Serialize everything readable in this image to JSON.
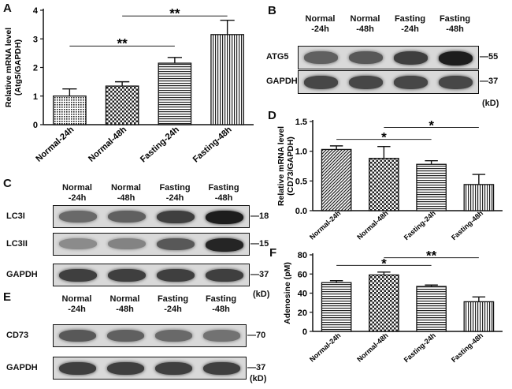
{
  "panels": {
    "A": "A",
    "B": "B",
    "C": "C",
    "D": "D",
    "E": "E",
    "F": "F"
  },
  "conditions_two_line": [
    "Normal\n-24h",
    "Normal\n-48h",
    "Fasting\n-24h",
    "Fasting\n-48h"
  ],
  "kd_label": "(kD)",
  "blot_B": {
    "rows": [
      {
        "name": "ATG5",
        "marker": "55",
        "intensities": [
          0.55,
          0.6,
          0.75,
          0.95
        ]
      },
      {
        "name": "GAPDH",
        "marker": "37",
        "intensities": [
          0.7,
          0.7,
          0.7,
          0.7
        ]
      }
    ]
  },
  "blot_C": {
    "rows": [
      {
        "name": "LC3I",
        "marker": "18",
        "intensities": [
          0.5,
          0.55,
          0.75,
          0.95
        ]
      },
      {
        "name": "LC3II",
        "marker": "15",
        "intensities": [
          0.3,
          0.35,
          0.6,
          0.9
        ]
      },
      {
        "name": "GAPDH",
        "marker": "37",
        "intensities": [
          0.75,
          0.75,
          0.75,
          0.75
        ]
      }
    ]
  },
  "blot_E": {
    "rows": [
      {
        "name": "CD73",
        "marker": "70",
        "intensities": [
          0.6,
          0.55,
          0.5,
          0.45
        ]
      },
      {
        "name": "GAPDH",
        "marker": "37",
        "intensities": [
          0.75,
          0.75,
          0.75,
          0.75
        ]
      }
    ]
  },
  "chart_data": [
    {
      "panel": "A",
      "type": "bar",
      "ylabel_line1": "Relative mRNA level",
      "ylabel_line2": "(Atg5/GAPDH)",
      "categories": [
        "Normal-24h",
        "Normal-48h",
        "Fasting-24h",
        "Fasting-48h"
      ],
      "values": [
        1.0,
        1.35,
        2.15,
        3.15
      ],
      "errors": [
        0.25,
        0.15,
        0.2,
        0.5
      ],
      "ylim": [
        0,
        4
      ],
      "yticks": [
        0,
        1,
        2,
        3,
        4
      ],
      "patterns": [
        "dots",
        "checker",
        "hstripe",
        "vstripe"
      ],
      "significance": [
        {
          "from": 0,
          "to": 2,
          "label": "**",
          "y": 2.75
        },
        {
          "from": 1,
          "to": 3,
          "label": "**",
          "y": 3.8
        }
      ]
    },
    {
      "panel": "D",
      "type": "bar",
      "ylabel_line1": "Relative mRNA level",
      "ylabel_line2": "(CD73/GAPDH)",
      "categories": [
        "Normal-24h",
        "Normal-48h",
        "Fasting-24h",
        "Fasting-48h"
      ],
      "values": [
        1.03,
        0.88,
        0.78,
        0.44
      ],
      "errors": [
        0.06,
        0.2,
        0.06,
        0.17
      ],
      "ylim": [
        0,
        1.5
      ],
      "yticks": [
        0.0,
        0.5,
        1.0,
        1.5
      ],
      "patterns": [
        "diag",
        "checker",
        "hstripe",
        "vstripe"
      ],
      "significance": [
        {
          "from": 0,
          "to": 2,
          "label": "*",
          "y": 1.2
        },
        {
          "from": 1,
          "to": 3,
          "label": "*",
          "y": 1.4
        }
      ]
    },
    {
      "panel": "F",
      "type": "bar",
      "ylabel_line1": "Adenosine (pM)",
      "ylabel_line2": "",
      "categories": [
        "Normal-24h",
        "Normal-48h",
        "Fasting-24h",
        "Fasting-48h"
      ],
      "values": [
        51,
        59,
        47,
        31
      ],
      "errors": [
        2,
        3,
        1.5,
        5
      ],
      "ylim": [
        0,
        80
      ],
      "yticks": [
        0,
        20,
        40,
        60,
        80
      ],
      "patterns": [
        "hstripe",
        "checker",
        "hstripe",
        "vstripe"
      ],
      "significance": [
        {
          "from": 0,
          "to": 2,
          "label": "*",
          "y": 69
        },
        {
          "from": 1,
          "to": 3,
          "label": "**",
          "y": 77
        }
      ]
    }
  ]
}
